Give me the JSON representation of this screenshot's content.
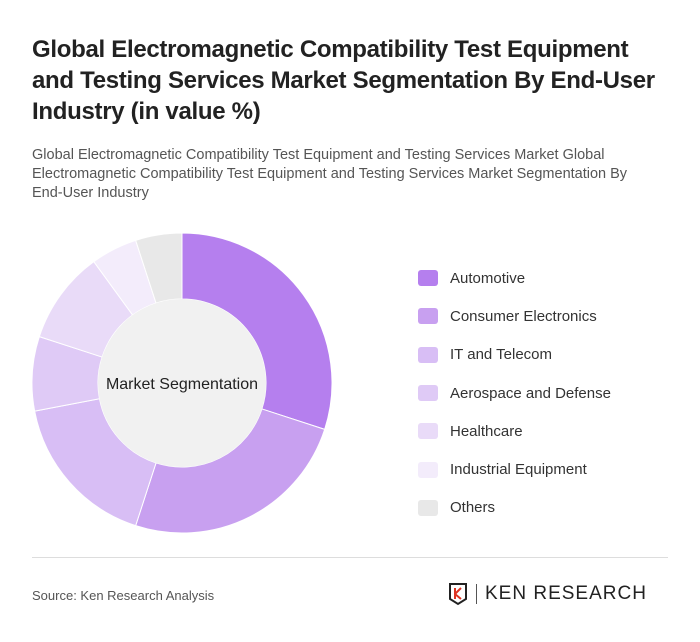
{
  "title": "Global Electromagnetic Compatibility Test Equipment and Testing Services Market Segmentation By End-User Industry (in value %)",
  "subtitle": "Global Electromagnetic Compatibility Test Equipment and Testing Services Market Global Electromagnetic Compatibility Test Equipment and Testing Services Market Segmentation By End-User Industry",
  "source": "Source: Ken Research Analysis",
  "logo_text": "KEN RESEARCH",
  "chart_data": {
    "type": "pie",
    "donut": true,
    "center_label": "Market Segmentation",
    "categories": [
      "Automotive",
      "Consumer Electronics",
      "IT and Telecom",
      "Aerospace and Defense",
      "Healthcare",
      "Industrial Equipment",
      "Others"
    ],
    "values": [
      30,
      25,
      17,
      8,
      10,
      5,
      5
    ],
    "colors": [
      "#b57fee",
      "#c8a0f0",
      "#d8bef5",
      "#dfcaf6",
      "#e9dbf8",
      "#f3ecfb",
      "#e8e8e8"
    ],
    "legend_position": "right"
  }
}
